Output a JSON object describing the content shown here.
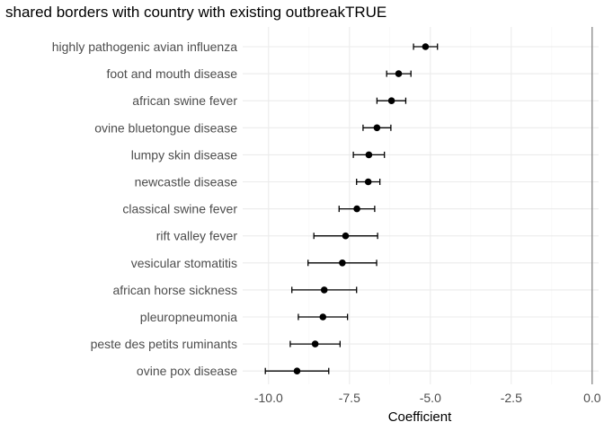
{
  "chart_data": {
    "type": "scatter",
    "title": "shared borders with country with existing outbreakTRUE",
    "xlabel": "Coefficient",
    "ylabel": "",
    "xlim": [
      -10.8,
      0.2
    ],
    "x_ticks": [
      -10.0,
      -7.5,
      -5.0,
      -2.5,
      0.0
    ],
    "x_tick_labels": [
      "-10.0",
      "-7.5",
      "-5.0",
      "-2.5",
      "0.0"
    ],
    "grid": true,
    "reference_line_x": 0.0,
    "point_color": "#000000",
    "categories": [
      "highly pathogenic avian influenza",
      "foot and mouth disease",
      "african swine fever",
      "ovine bluetongue disease",
      "lumpy skin disease",
      "newcastle disease",
      "classical swine fever",
      "rift valley fever",
      "vesicular stomatitis",
      "african horse sickness",
      "pleuropneumonia",
      "peste des petits ruminants",
      "ovine pox disease"
    ],
    "estimates": [
      -5.15,
      -5.98,
      -6.2,
      -6.65,
      -6.9,
      -6.92,
      -7.27,
      -7.62,
      -7.72,
      -8.28,
      -8.32,
      -8.56,
      -9.12
    ],
    "lower": [
      -5.52,
      -6.35,
      -6.65,
      -7.08,
      -7.38,
      -7.28,
      -7.82,
      -8.6,
      -8.78,
      -9.28,
      -9.08,
      -9.33,
      -10.1
    ],
    "upper": [
      -4.78,
      -5.6,
      -5.76,
      -6.22,
      -6.42,
      -6.56,
      -6.72,
      -6.63,
      -6.66,
      -7.28,
      -7.56,
      -7.79,
      -8.14
    ]
  }
}
